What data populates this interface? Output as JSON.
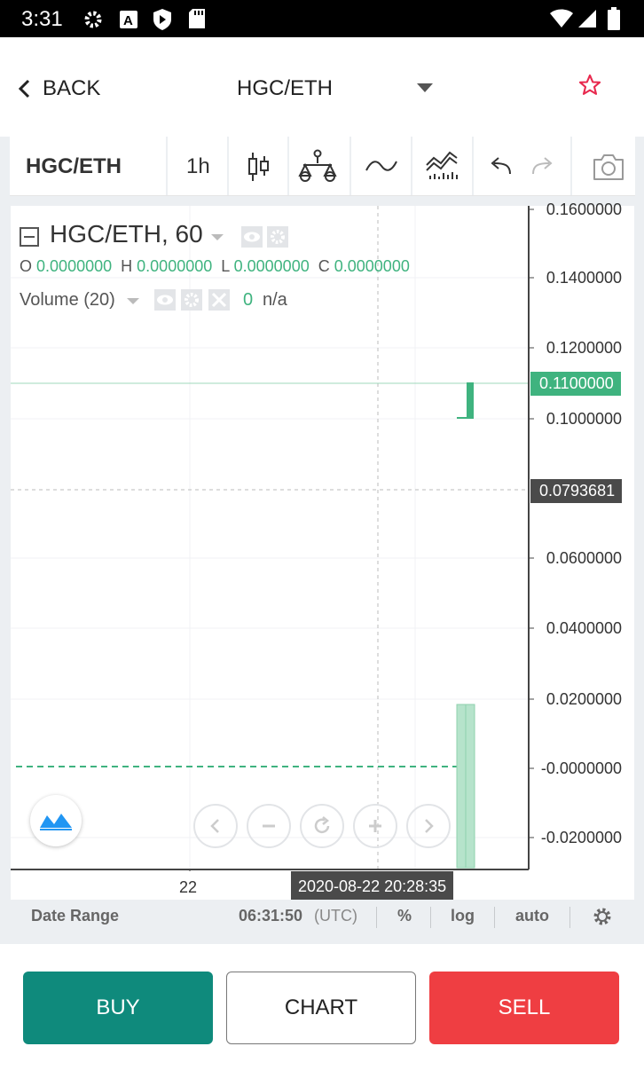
{
  "status_bar": {
    "time": "3:31"
  },
  "header": {
    "back_label": "BACK",
    "pair": "HGC/ETH"
  },
  "toolbar": {
    "symbol": "HGC/ETH",
    "interval": "1h"
  },
  "legend": {
    "title": "HGC/ETH, 60",
    "ohlc": {
      "o_label": "O",
      "o": "0.0000000",
      "h_label": "H",
      "h": "0.0000000",
      "l_label": "L",
      "l": "0.0000000",
      "c_label": "C",
      "c": "0.0000000"
    },
    "volume_label": "Volume (20)",
    "volume_value": "0",
    "volume_na": "n/a"
  },
  "price_axis": {
    "ticks": [
      "0.1600000",
      "0.1400000",
      "0.1200000",
      "0.1000000",
      "0.0600000",
      "0.0400000",
      "0.0200000",
      "-0.0000000",
      "-0.0200000"
    ],
    "last_price": "0.1100000",
    "crosshair_price": "0.0793681"
  },
  "time_axis": {
    "tick": "22",
    "crosshair_time": "2020-08-22 20:28:35"
  },
  "range_bar": {
    "date_range": "Date Range",
    "clock": "06:31:50",
    "tz": "(UTC)",
    "percent": "%",
    "log": "log",
    "auto": "auto"
  },
  "actions": {
    "buy": "BUY",
    "chart": "CHART",
    "sell": "SELL"
  },
  "colors": {
    "buy": "#0f8a7c",
    "sell": "#ef3e42",
    "up": "#3fb37f",
    "star": "#e8294e"
  }
}
